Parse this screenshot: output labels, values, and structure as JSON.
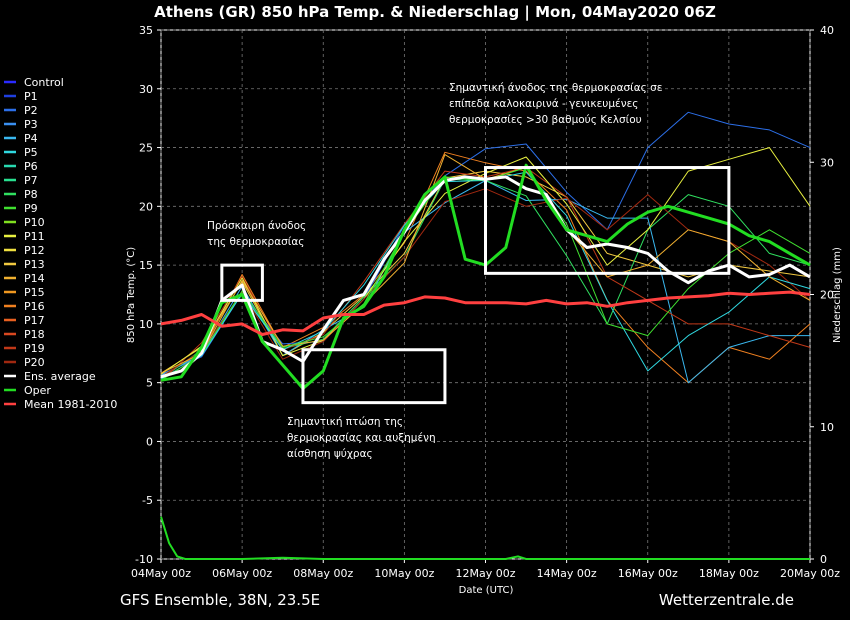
{
  "chart_data": {
    "type": "line",
    "title": "Athens  (GR)  850 hPa Temp. & Niederschlag | Mon, 04May2020 06Z",
    "xlabel": "Date (UTC)",
    "ylabel": "850 hPa Temp. (°C)",
    "y2label": "Niederschlag (mm)",
    "ylim": [
      -10,
      35
    ],
    "y2lim": [
      0,
      40
    ],
    "yticks": [
      -10,
      -5,
      0,
      5,
      10,
      15,
      20,
      25,
      30,
      35
    ],
    "y2ticks": [
      0,
      10,
      20,
      30,
      40
    ],
    "x_days_range": [
      0,
      16
    ],
    "x_tick_days": [
      0,
      2,
      4,
      6,
      8,
      10,
      12,
      14,
      16
    ],
    "x_tick_labels": [
      "04May 00z",
      "06May 00z",
      "08May 00z",
      "10May 00z",
      "12May 00z",
      "14May 00z",
      "16May 00z",
      "18May 00z",
      "20May 00z"
    ],
    "grid": true,
    "legend_position": "left",
    "legend": [
      {
        "name": "Control",
        "color": "#2a2aff"
      },
      {
        "name": "P1",
        "color": "#1f3fe0"
      },
      {
        "name": "P2",
        "color": "#2c6fe8"
      },
      {
        "name": "P3",
        "color": "#3a8ff0"
      },
      {
        "name": "P4",
        "color": "#3ab8f0"
      },
      {
        "name": "P5",
        "color": "#30d8e0"
      },
      {
        "name": "P6",
        "color": "#28d8b0"
      },
      {
        "name": "P7",
        "color": "#28e090"
      },
      {
        "name": "P8",
        "color": "#30e060"
      },
      {
        "name": "P9",
        "color": "#40e030"
      },
      {
        "name": "P10",
        "color": "#80e020"
      },
      {
        "name": "P11",
        "color": "#e8f040"
      },
      {
        "name": "P12",
        "color": "#f0e040"
      },
      {
        "name": "P13",
        "color": "#f0c840"
      },
      {
        "name": "P14",
        "color": "#f0b030"
      },
      {
        "name": "P15",
        "color": "#f09820"
      },
      {
        "name": "P16",
        "color": "#f08020"
      },
      {
        "name": "P17",
        "color": "#e86020"
      },
      {
        "name": "P18",
        "color": "#d84820"
      },
      {
        "name": "P19",
        "color": "#c03818"
      },
      {
        "name": "P20",
        "color": "#a02810"
      },
      {
        "name": "Ens. average",
        "color": "#ffffff"
      },
      {
        "name": "Oper",
        "color": "#22dd22"
      },
      {
        "name": "Mean 1981-2010",
        "color": "#ff4040"
      }
    ],
    "series": [
      {
        "name": "Ens. average",
        "color": "#ffffff",
        "width": 3,
        "x": [
          0,
          0.5,
          1,
          1.5,
          2,
          2.5,
          3,
          3.5,
          4,
          4.5,
          5,
          5.5,
          6,
          6.5,
          7,
          7.5,
          8,
          8.5,
          9,
          9.5,
          10,
          10.5,
          11,
          11.5,
          12,
          12.5,
          13,
          13.5,
          14,
          14.5,
          15,
          15.5,
          16
        ],
        "y": [
          5.5,
          6,
          7.5,
          12,
          13.3,
          8.5,
          7.8,
          6.8,
          9.5,
          12,
          12.5,
          15.5,
          17.8,
          20.5,
          22.2,
          22.5,
          22.3,
          22.5,
          21.5,
          21,
          18,
          16.5,
          16.8,
          16.5,
          16,
          14.5,
          13.5,
          14.5,
          15,
          14,
          14.2,
          15,
          14
        ]
      },
      {
        "name": "Oper",
        "color": "#22dd22",
        "width": 3,
        "x": [
          0,
          0.5,
          1,
          1.5,
          2,
          2.5,
          3,
          3.5,
          4,
          4.5,
          5,
          5.5,
          6,
          6.5,
          7,
          7.5,
          8,
          8.5,
          9,
          9.5,
          10,
          10.5,
          11,
          11.5,
          12,
          12.5,
          13,
          13.5,
          14,
          14.5,
          15,
          15.5,
          16
        ],
        "y": [
          5.2,
          5.5,
          8,
          11.8,
          12.5,
          8.5,
          6.5,
          4.5,
          6,
          10.5,
          11.5,
          14,
          18,
          21,
          22.5,
          15.5,
          15,
          16.5,
          23.5,
          20.5,
          18,
          17.5,
          17,
          18.5,
          19.5,
          20,
          19.5,
          19,
          18.5,
          17.5,
          17,
          16,
          15
        ]
      },
      {
        "name": "Mean 1981-2010",
        "color": "#ff4040",
        "width": 3,
        "x": [
          0,
          0.5,
          1,
          1.5,
          2,
          2.5,
          3,
          3.5,
          4,
          4.5,
          5,
          5.5,
          6,
          6.5,
          7,
          7.5,
          8,
          8.5,
          9,
          9.5,
          10,
          10.5,
          11,
          11.5,
          12,
          12.5,
          13,
          13.5,
          14,
          14.5,
          15,
          15.5,
          16
        ],
        "y": [
          10,
          10.3,
          10.8,
          9.8,
          10,
          9.1,
          9.5,
          9.4,
          10.5,
          10.8,
          10.8,
          11.6,
          11.8,
          12.3,
          12.2,
          11.8,
          11.8,
          11.8,
          11.7,
          12,
          11.7,
          11.8,
          11.5,
          11.8,
          12,
          12.2,
          12.3,
          12.4,
          12.6,
          12.5,
          12.6,
          12.7,
          12.5
        ]
      },
      {
        "name": "P13",
        "color": "#f0c840",
        "width": 1,
        "x": [
          0,
          1,
          2,
          3,
          4,
          5,
          6,
          7,
          8,
          9,
          10,
          11,
          12,
          13,
          14,
          15,
          16
        ],
        "y": [
          5.8,
          8,
          13.6,
          7.3,
          9.3,
          12.4,
          16,
          22.4,
          23,
          22.5,
          20.8,
          16,
          15,
          14,
          15,
          14.5,
          14
        ]
      },
      {
        "name": "P16",
        "color": "#f08020",
        "width": 1,
        "x": [
          0,
          1,
          2,
          3,
          4,
          5,
          6,
          7,
          8,
          9,
          10,
          11,
          12,
          13,
          14,
          15,
          16
        ],
        "y": [
          5.5,
          7.6,
          14.2,
          8,
          9.7,
          12.5,
          16.9,
          24.6,
          23.7,
          23,
          19.7,
          12,
          8,
          5,
          8,
          7,
          10
        ]
      },
      {
        "name": "P2",
        "color": "#2c6fe8",
        "width": 1,
        "x": [
          0,
          1,
          2,
          3,
          4,
          5,
          6,
          7,
          8,
          9,
          10,
          11,
          12,
          13,
          14,
          15,
          16
        ],
        "y": [
          5.7,
          7.2,
          12.6,
          8.3,
          8.5,
          12.1,
          18.4,
          22.6,
          24.9,
          25.3,
          21.2,
          18,
          25,
          28,
          27,
          26.5,
          25
        ]
      },
      {
        "name": "P4",
        "color": "#3ab8f0",
        "width": 1,
        "x": [
          0,
          1,
          2,
          3,
          4,
          5,
          6,
          7,
          8,
          9,
          10,
          11,
          12,
          13,
          14,
          15,
          16
        ],
        "y": [
          5.6,
          7.4,
          13.2,
          7.3,
          9.5,
          11.4,
          17.8,
          20.3,
          22.2,
          20.5,
          20.6,
          19,
          19,
          5,
          8,
          9,
          9
        ]
      },
      {
        "name": "P8",
        "color": "#30e060",
        "width": 1,
        "x": [
          0,
          1,
          2,
          3,
          4,
          5,
          6,
          7,
          8,
          9,
          10,
          11,
          12,
          13,
          14,
          15,
          16
        ],
        "y": [
          5.3,
          7.8,
          12.5,
          7.9,
          8.7,
          12.3,
          15.7,
          22.3,
          22.2,
          20.9,
          15.8,
          10,
          18,
          21,
          20,
          16,
          15
        ]
      },
      {
        "name": "P19",
        "color": "#c03818",
        "width": 1,
        "x": [
          0,
          1,
          2,
          3,
          4,
          5,
          6,
          7,
          8,
          9,
          10,
          11,
          12,
          13,
          14,
          15,
          16
        ],
        "y": [
          5.1,
          8.4,
          14,
          7.8,
          9.1,
          13.6,
          18.5,
          23,
          22.5,
          23.3,
          20.8,
          14,
          12,
          10,
          10,
          9,
          8
        ]
      },
      {
        "name": "P11",
        "color": "#e8f040",
        "width": 1,
        "x": [
          0,
          1,
          2,
          3,
          4,
          5,
          6,
          7,
          8,
          9,
          10,
          11,
          12,
          13,
          14,
          15,
          16
        ],
        "y": [
          5.7,
          8.1,
          13.9,
          7.3,
          8.6,
          12.1,
          17,
          21.1,
          22.8,
          24.2,
          20.2,
          15,
          18,
          23,
          24,
          25,
          20
        ]
      },
      {
        "name": "P20",
        "color": "#a02810",
        "width": 1,
        "x": [
          0,
          1,
          2,
          3,
          4,
          5,
          6,
          7,
          8,
          9,
          10,
          11,
          12,
          13,
          14,
          15,
          16
        ],
        "y": [
          5.5,
          7.7,
          12.7,
          7,
          8.5,
          12.1,
          15.7,
          20.4,
          21.5,
          20,
          20.7,
          18,
          21,
          18,
          17,
          15,
          12
        ]
      },
      {
        "name": "P5",
        "color": "#30d8e0",
        "width": 1,
        "x": [
          0,
          1,
          2,
          3,
          4,
          5,
          6,
          7,
          8,
          9,
          10,
          11,
          12,
          13,
          14,
          15,
          16
        ],
        "y": [
          5.3,
          7.3,
          12.6,
          7.8,
          9.4,
          13.3,
          18.4,
          22.1,
          22.2,
          22.9,
          19.2,
          12,
          6,
          9,
          11,
          14,
          13
        ]
      },
      {
        "name": "P14",
        "color": "#f0b030",
        "width": 1,
        "x": [
          0,
          1,
          2,
          3,
          4,
          5,
          6,
          7,
          8,
          9,
          10,
          11,
          12,
          13,
          14,
          15,
          16
        ],
        "y": [
          5.8,
          7.5,
          13.7,
          8.1,
          8.6,
          11.7,
          15.2,
          24.4,
          22.3,
          23.3,
          18.1,
          14,
          15,
          18,
          17,
          14,
          12
        ]
      },
      {
        "name": "P9",
        "color": "#40e030",
        "width": 1,
        "x": [
          0,
          1,
          2,
          3,
          4,
          5,
          6,
          7,
          8,
          9,
          10,
          11,
          12,
          13,
          14,
          15,
          16
        ],
        "y": [
          5.2,
          7.4,
          12.8,
          8,
          8.9,
          11.7,
          17.8,
          22.5,
          22.2,
          23.3,
          18.5,
          10,
          9,
          13,
          16,
          18,
          16
        ]
      }
    ],
    "precipitation": {
      "name": "Niederschlag",
      "x": [
        0,
        0.2,
        0.4,
        0.6,
        1,
        2,
        3,
        4,
        5,
        6,
        7,
        8,
        8.5,
        8.8,
        9,
        9.5,
        10,
        11,
        12,
        13,
        14,
        14.5,
        15,
        16
      ],
      "y": [
        3.2,
        1.2,
        0.2,
        0,
        0,
        0,
        0.1,
        0,
        0,
        0,
        0,
        0,
        0,
        0.2,
        0,
        0,
        0,
        0,
        0,
        0,
        0,
        0,
        0,
        0
      ]
    },
    "annotations": [
      {
        "text": [
          "Πρόσκαιρη άνοδος",
          "της θερμοκρασίας"
        ]
      },
      {
        "text": [
          "Σημαντική πτώση της",
          "θερμοκρασίας και αυξημένη",
          "αίσθηση ψύχρας"
        ]
      },
      {
        "text": [
          "Σημαντική άνοδος της θερμοκρασίας σε",
          "επίπεδα καλοκαιρινά - γενικευμένες",
          "θερμοκρασίες >30 βαθμούς Κελσίου"
        ]
      }
    ],
    "boxes": [
      {
        "x": [
          1.5,
          2.5
        ],
        "y": [
          12,
          15
        ]
      },
      {
        "x": [
          3.5,
          7.0
        ],
        "y": [
          3.3,
          7.8
        ]
      },
      {
        "x": [
          8.0,
          14.0
        ],
        "y": [
          14.3,
          23.3
        ]
      }
    ]
  },
  "footer": {
    "left": "GFS Ensemble, 38N, 23.5E",
    "right": "Wetterzentrale.de"
  }
}
